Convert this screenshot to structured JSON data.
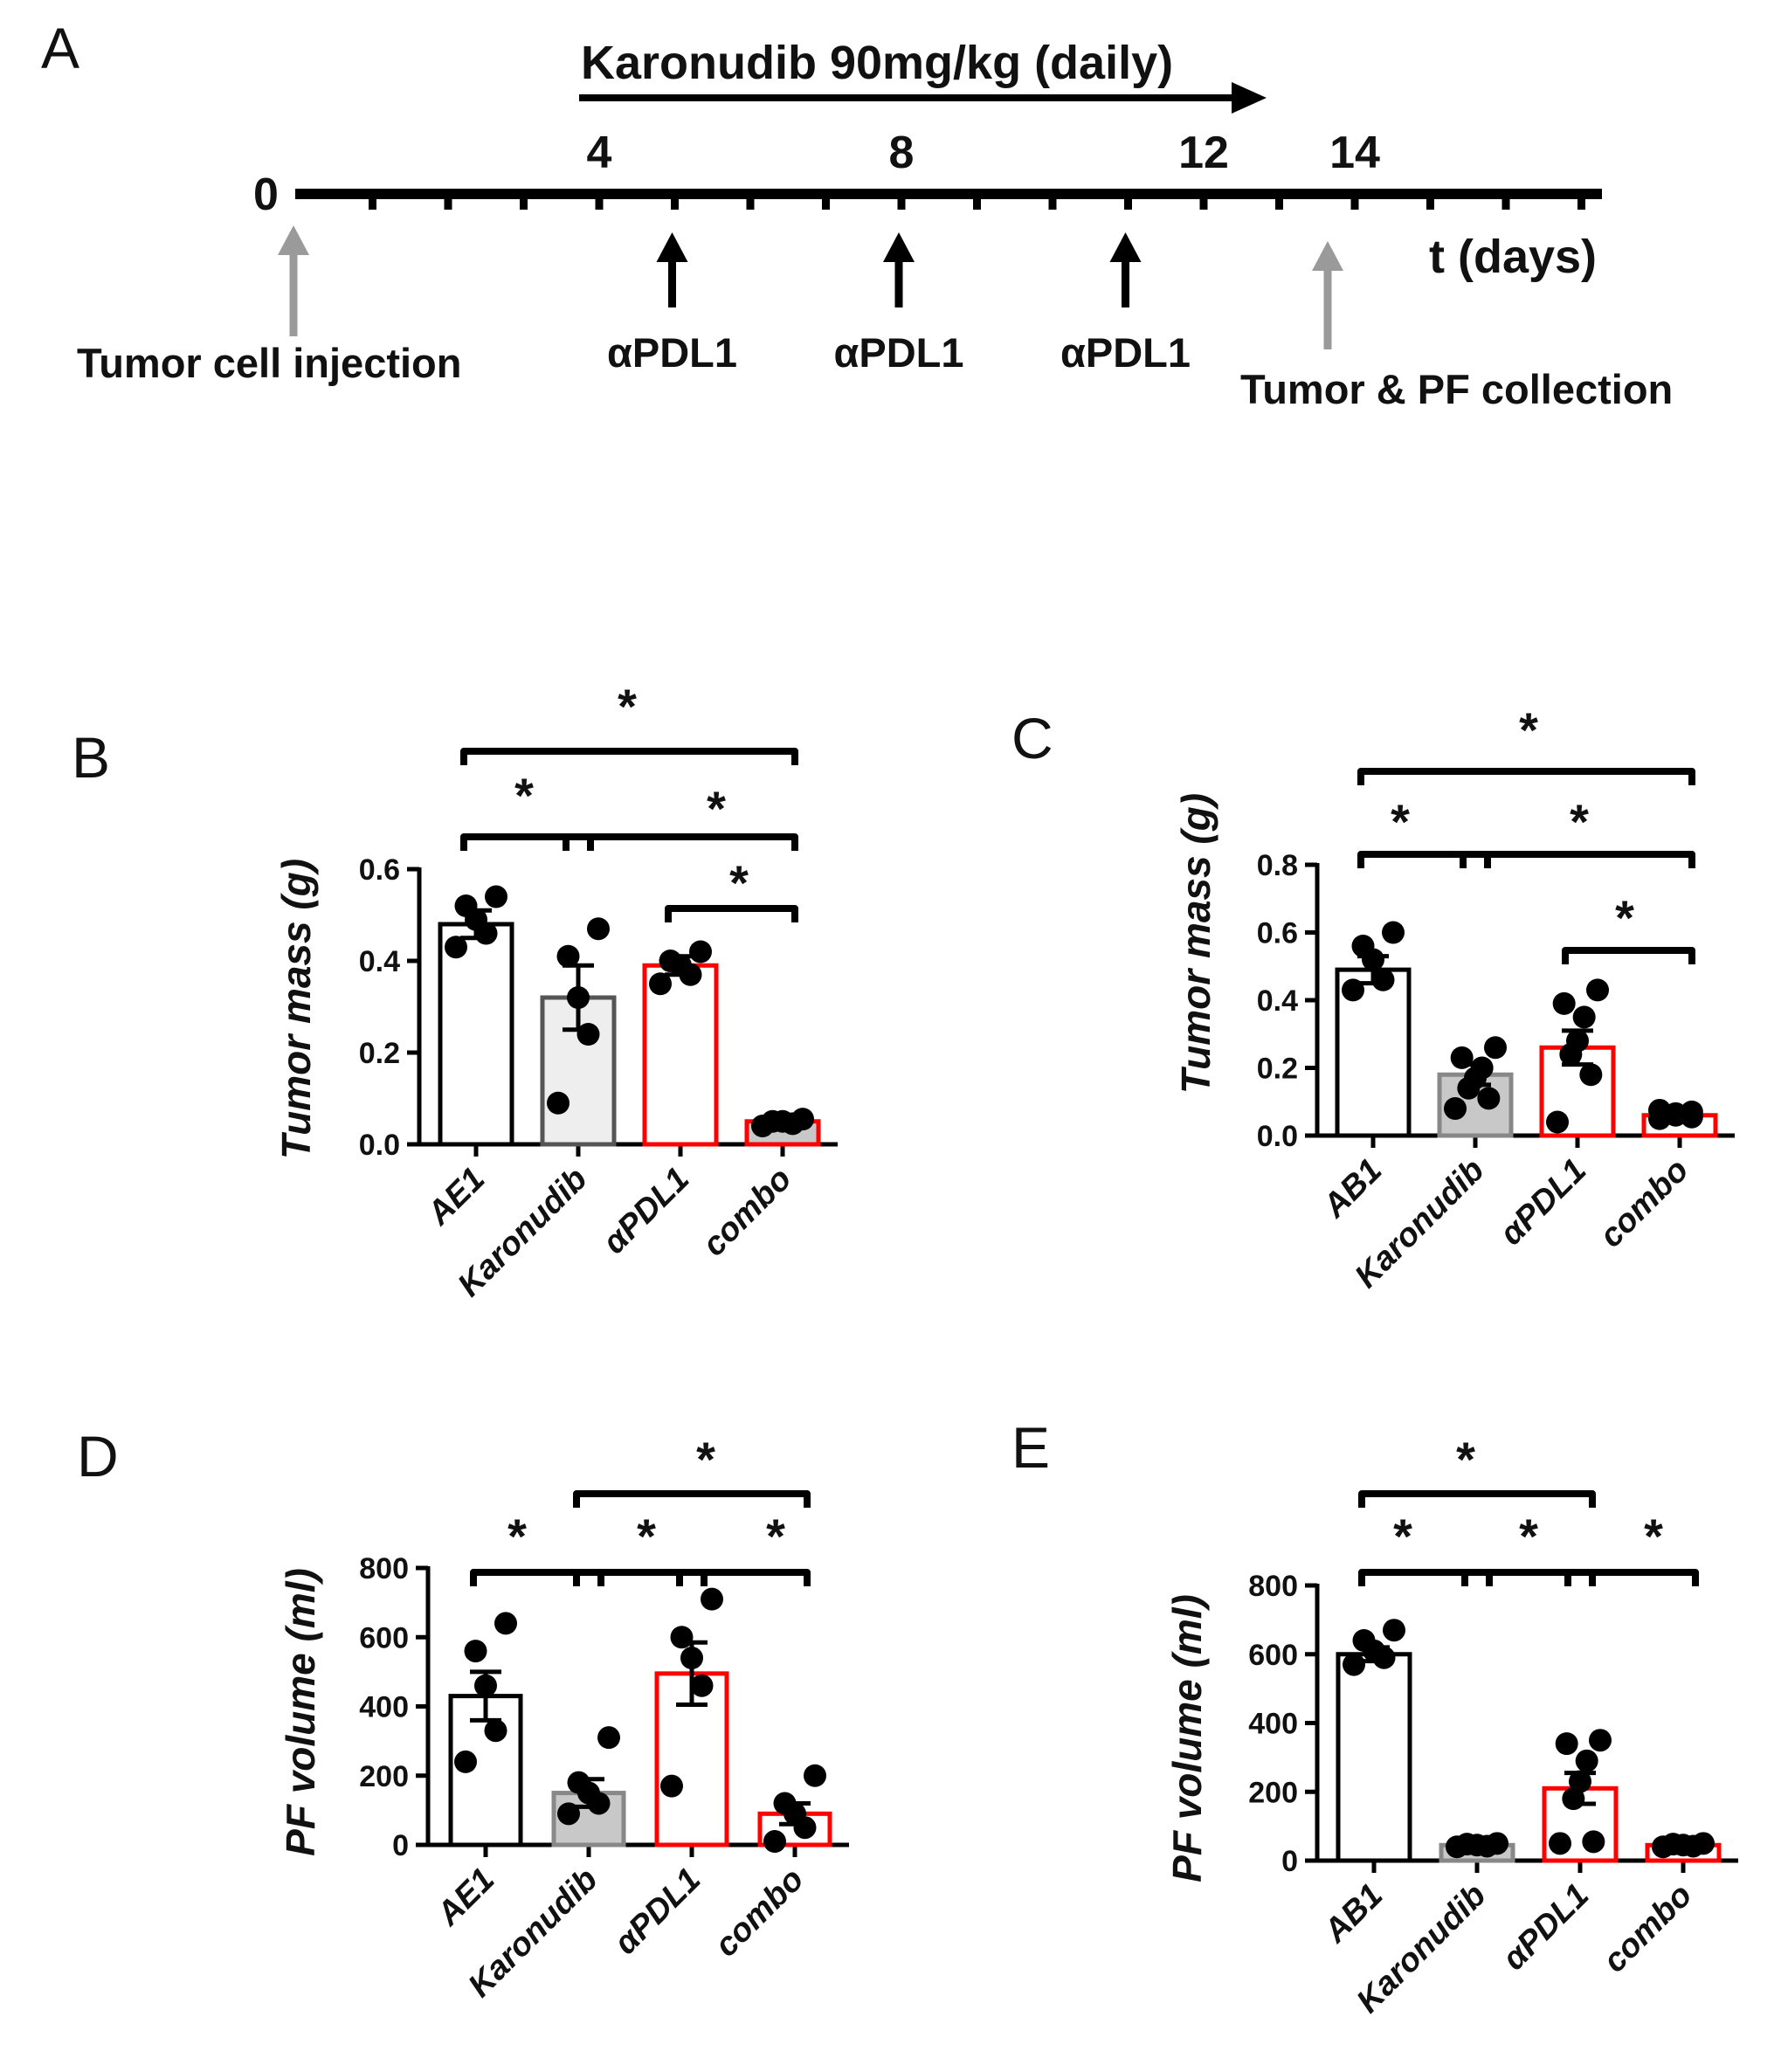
{
  "timeline": {
    "panel_label": "A",
    "treatment_label": "Karonudib 90mg/kg (daily)",
    "start_label": "0",
    "tick_labels": [
      {
        "day": 4,
        "text": "4"
      },
      {
        "day": 8,
        "text": "8"
      },
      {
        "day": 12,
        "text": "12"
      },
      {
        "day": 14,
        "text": "14"
      }
    ],
    "axis_label": "t (days)",
    "treatment_start_day": 4,
    "treatment_end_day": 13,
    "injection_label": "Tumor cell injection",
    "injection_day": 0,
    "collection_label": "Tumor & PF collection",
    "collection_day": 14,
    "antibody_label": "αPDL1",
    "antibody_days": [
      5,
      8,
      11
    ],
    "max_day": 17,
    "colors": {
      "event_arrow": "#9a9a9a",
      "antibody_arrow": "#000000"
    }
  },
  "chart_data": [
    {
      "panel": "B",
      "type": "bar",
      "title": "",
      "xlabel": "",
      "ylabel": "Tumor mass (g)",
      "categories": [
        "AE1",
        "Karonudib",
        "αPDL1",
        "combo"
      ],
      "values": [
        0.48,
        0.32,
        0.39,
        0.05
      ],
      "sem": [
        0.03,
        0.07,
        0.02,
        0.01
      ],
      "points": [
        [
          0.43,
          0.46,
          0.49,
          0.52,
          0.54
        ],
        [
          0.09,
          0.24,
          0.32,
          0.41,
          0.47
        ],
        [
          0.35,
          0.37,
          0.39,
          0.4,
          0.42
        ],
        [
          0.04,
          0.045,
          0.05,
          0.05,
          0.055
        ]
      ],
      "ylim": [
        0,
        0.6
      ],
      "yticks": [
        "0.0",
        "0.2",
        "0.4",
        "0.6"
      ],
      "bar_fill": [
        "#ffffff",
        "#eeeeee",
        "#ffffff",
        "#c8c8c8"
      ],
      "bar_edge": [
        "#000000",
        "#555555",
        "#ff0000",
        "#ff0000"
      ],
      "significance": [
        {
          "from": 0,
          "to": 1,
          "label": "*"
        },
        {
          "from": 1,
          "to": 3,
          "label": "*"
        },
        {
          "from": 2,
          "to": 3,
          "label": "*"
        },
        {
          "from": 0,
          "to": 3,
          "label": "*"
        }
      ]
    },
    {
      "panel": "C",
      "type": "bar",
      "title": "",
      "xlabel": "",
      "ylabel": "Tumor mass (g)",
      "categories": [
        "AB1",
        "Karonudib",
        "αPDL1",
        "combo"
      ],
      "values": [
        0.49,
        0.18,
        0.26,
        0.06
      ],
      "sem": [
        0.04,
        0.03,
        0.05,
        0.01
      ],
      "points": [
        [
          0.43,
          0.46,
          0.52,
          0.56,
          0.6
        ],
        [
          0.08,
          0.11,
          0.14,
          0.17,
          0.2,
          0.23,
          0.26
        ],
        [
          0.04,
          0.18,
          0.24,
          0.28,
          0.35,
          0.39,
          0.43
        ],
        [
          0.05,
          0.055,
          0.06,
          0.065,
          0.07,
          0.075
        ]
      ],
      "ylim": [
        0,
        0.8
      ],
      "yticks": [
        "0.0",
        "0.2",
        "0.4",
        "0.6",
        "0.8"
      ],
      "bar_fill": [
        "#ffffff",
        "#c8c8c8",
        "#ffffff",
        "#ffffff"
      ],
      "bar_edge": [
        "#000000",
        "#888888",
        "#ff0000",
        "#ff0000"
      ],
      "significance": [
        {
          "from": 0,
          "to": 1,
          "label": "*"
        },
        {
          "from": 1,
          "to": 3,
          "label": "*"
        },
        {
          "from": 2,
          "to": 3,
          "label": "*"
        },
        {
          "from": 0,
          "to": 3,
          "label": "*"
        }
      ]
    },
    {
      "panel": "D",
      "type": "bar",
      "title": "",
      "xlabel": "",
      "ylabel": "PF volume (ml)",
      "categories": [
        "AE1",
        "Karonudib",
        "αPDL1",
        "combo"
      ],
      "values": [
        430,
        150,
        495,
        90
      ],
      "sem": [
        70,
        40,
        90,
        30
      ],
      "points": [
        [
          240,
          330,
          460,
          560,
          640
        ],
        [
          90,
          120,
          150,
          180,
          310
        ],
        [
          170,
          460,
          540,
          600,
          710
        ],
        [
          10,
          50,
          90,
          120,
          200
        ]
      ],
      "ylim": [
        0,
        800
      ],
      "yticks": [
        "0",
        "200",
        "400",
        "600",
        "800"
      ],
      "bar_fill": [
        "#ffffff",
        "#c8c8c8",
        "#ffffff",
        "#ffffff"
      ],
      "bar_edge": [
        "#000000",
        "#888888",
        "#ff0000",
        "#ff0000"
      ],
      "significance": [
        {
          "from": 0,
          "to": 1,
          "label": "*"
        },
        {
          "from": 1,
          "to": 2,
          "label": "*"
        },
        {
          "from": 2,
          "to": 3,
          "label": "*"
        },
        {
          "from": 1,
          "to": 3,
          "label": "*"
        }
      ]
    },
    {
      "panel": "E",
      "type": "bar",
      "title": "",
      "xlabel": "",
      "ylabel": "PF volume (ml)",
      "categories": [
        "AB1",
        "Karonudib",
        "αPDL1",
        "combo"
      ],
      "values": [
        600,
        45,
        210,
        45
      ],
      "sem": [
        20,
        3,
        45,
        3
      ],
      "points": [
        [
          570,
          590,
          610,
          640,
          670
        ],
        [
          40,
          42,
          45,
          48,
          50
        ],
        [
          50,
          55,
          180,
          230,
          290,
          340,
          350
        ],
        [
          40,
          42,
          45,
          48,
          50
        ]
      ],
      "ylim": [
        0,
        800
      ],
      "yticks": [
        "0",
        "200",
        "400",
        "600",
        "800"
      ],
      "bar_fill": [
        "#ffffff",
        "#c8c8c8",
        "#ffffff",
        "#ffffff"
      ],
      "bar_edge": [
        "#000000",
        "#888888",
        "#ff0000",
        "#ff0000"
      ],
      "significance": [
        {
          "from": 0,
          "to": 1,
          "label": "*"
        },
        {
          "from": 1,
          "to": 2,
          "label": "*"
        },
        {
          "from": 2,
          "to": 3,
          "label": "*"
        },
        {
          "from": 0,
          "to": 2,
          "label": "*"
        }
      ]
    }
  ]
}
